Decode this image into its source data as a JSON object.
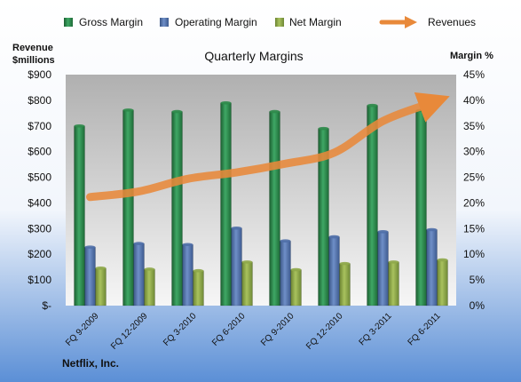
{
  "chart_data": {
    "type": "bar",
    "title": "Quarterly Margins",
    "company": "Netflix, Inc.",
    "y_left_label": [
      "Revenue",
      "$millions"
    ],
    "y_right_label": "Margin %",
    "categories": [
      "FQ 9-2009",
      "FQ 12-2009",
      "FQ 3-2010",
      "FQ 6-2010",
      "FQ 9-2010",
      "FQ 12-2010",
      "FQ 3-2011",
      "FQ 6-2011"
    ],
    "y_left_ticks": [
      "$-",
      "$100",
      "$200",
      "$300",
      "$400",
      "$500",
      "$600",
      "$700",
      "$800",
      "$900"
    ],
    "y_right_ticks": [
      "0%",
      "5%",
      "10%",
      "15%",
      "20%",
      "25%",
      "30%",
      "35%",
      "40%",
      "45%"
    ],
    "ylim_left": [
      0,
      900
    ],
    "ylim_right": [
      0,
      45
    ],
    "series": [
      {
        "name": "Gross Margin",
        "axis": "right",
        "color": "#2e8b4a",
        "values": [
          35.0,
          38.1,
          37.8,
          39.5,
          37.8,
          34.5,
          39.0,
          38.0
        ]
      },
      {
        "name": "Operating Margin",
        "axis": "right",
        "color": "#4f6fa8",
        "values": [
          11.4,
          12.1,
          11.9,
          15.1,
          12.6,
          13.4,
          14.4,
          14.8
        ]
      },
      {
        "name": "Net Margin",
        "axis": "right",
        "color": "#8fa84a",
        "values": [
          7.3,
          7.1,
          6.8,
          8.5,
          7.0,
          8.2,
          8.5,
          8.9
        ]
      },
      {
        "name": "Revenues",
        "axis": "left",
        "type": "line",
        "color": "#e8893a",
        "values": [
          423,
          445,
          494,
          519,
          553,
          596,
          719,
          790
        ]
      }
    ],
    "legend_position": "top",
    "grid": false
  },
  "colors": {
    "plot_top": "#b4b4b4",
    "plot_bottom": "#f4f4f4",
    "page_top": "#ffffff",
    "page_bottom": "#5b8fd6"
  }
}
